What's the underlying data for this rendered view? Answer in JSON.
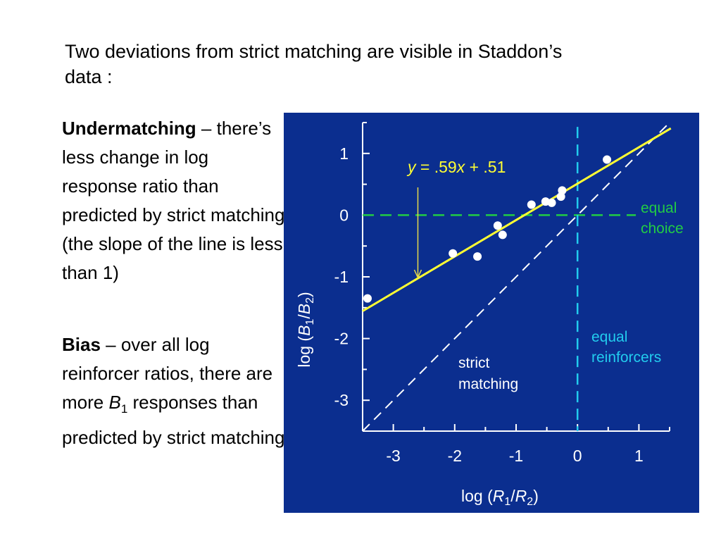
{
  "slide": {
    "title": "Two deviations from strict matching are visible in Staddon’s data :",
    "points": [
      {
        "term": "Undermatching",
        "text": " – there’s less change in log response ratio than predicted by strict matching (the slope of the line is less than 1)"
      },
      {
        "term": "Bias",
        "text_before": " – over all log reinforcer ratios, there are more ",
        "var": "B",
        "sub": "1",
        "text_after": " responses than predicted by strict matching"
      }
    ]
  },
  "chart_data": {
    "type": "scatter",
    "xlabel": {
      "prefix": "log (",
      "v1": "R",
      "s1": "1",
      "mid": "/",
      "v2": "R",
      "s2": "2",
      "suffix": ")"
    },
    "ylabel": {
      "prefix": "log (",
      "v1": "B",
      "s1": "1",
      "mid": "/",
      "v2": "B",
      "s2": "2",
      "suffix": ")"
    },
    "xlim": [
      -3.5,
      1.5
    ],
    "ylim": [
      -3.5,
      1.5
    ],
    "x_ticks": [
      -3,
      -2,
      -1,
      0,
      1
    ],
    "x_tick_labels": [
      "-3",
      "-2",
      "-1",
      "0",
      "1"
    ],
    "y_ticks": [
      1,
      0,
      -1,
      -2,
      -3
    ],
    "y_tick_labels": [
      "1",
      "0",
      "-1",
      "-2",
      "-3"
    ],
    "points": [
      {
        "x": -3.42,
        "y": -1.35
      },
      {
        "x": -2.03,
        "y": -0.62
      },
      {
        "x": -1.63,
        "y": -0.67
      },
      {
        "x": -1.3,
        "y": -0.17
      },
      {
        "x": -1.22,
        "y": -0.32
      },
      {
        "x": -0.75,
        "y": 0.17
      },
      {
        "x": -0.52,
        "y": 0.22
      },
      {
        "x": -0.42,
        "y": 0.2
      },
      {
        "x": -0.27,
        "y": 0.3
      },
      {
        "x": -0.25,
        "y": 0.4
      },
      {
        "x": 0.48,
        "y": 0.9
      }
    ],
    "fit_line": {
      "slope": 0.59,
      "intercept": 0.51,
      "label": {
        "y": "y",
        "eq": " = .59",
        "x": "x",
        "rest": " + .51"
      }
    },
    "strict_matching_line": {
      "slope": 1,
      "intercept": 0,
      "label_1": "strict",
      "label_2": "matching"
    },
    "equal_choice": {
      "y": 0,
      "label_1": "equal",
      "label_2": "choice"
    },
    "equal_reinforcers": {
      "x": 0,
      "label_1": "equal",
      "label_2": "reinforcers"
    },
    "colors": {
      "background": "#0b2e8f",
      "axis": "#ffffff",
      "points": "#ffffff",
      "fit_line": "#ffff33",
      "annotation_arrow": "#e6d84a",
      "strict_matching": "#ffffff",
      "equal_choice": "#22cc44",
      "equal_reinforcers": "#22ccee"
    }
  }
}
